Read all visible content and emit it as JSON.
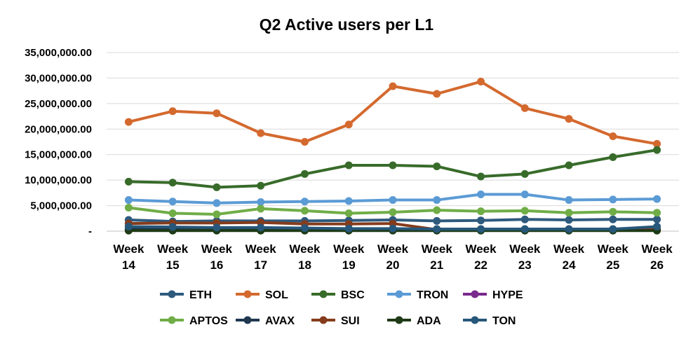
{
  "chart_data": {
    "type": "line",
    "title": "Q2 Active users per L1",
    "xlabel": "",
    "ylabel": "",
    "ylim": [
      0,
      35000000
    ],
    "y_ticks": [
      {
        "value": 0,
        "label": "-"
      },
      {
        "value": 5000000,
        "label": "5,000,000.00"
      },
      {
        "value": 10000000,
        "label": "10,000,000.00"
      },
      {
        "value": 15000000,
        "label": "15,000,000.00"
      },
      {
        "value": 20000000,
        "label": "20,000,000.00"
      },
      {
        "value": 25000000,
        "label": "25,000,000.00"
      },
      {
        "value": 30000000,
        "label": "30,000,000.00"
      },
      {
        "value": 35000000,
        "label": "35,000,000.00"
      }
    ],
    "grid": true,
    "legend_position": "bottom",
    "categories": [
      {
        "line1": "Week",
        "line2": "14"
      },
      {
        "line1": "Week",
        "line2": "15"
      },
      {
        "line1": "Week",
        "line2": "16"
      },
      {
        "line1": "Week",
        "line2": "17"
      },
      {
        "line1": "Week",
        "line2": "18"
      },
      {
        "line1": "Week",
        "line2": "19"
      },
      {
        "line1": "Week",
        "line2": "20"
      },
      {
        "line1": "Week",
        "line2": "21"
      },
      {
        "line1": "Week",
        "line2": "22"
      },
      {
        "line1": "Week",
        "line2": "23"
      },
      {
        "line1": "Week",
        "line2": "24"
      },
      {
        "line1": "Week",
        "line2": "25"
      },
      {
        "line1": "Week",
        "line2": "26"
      }
    ],
    "series": [
      {
        "name": "ETH",
        "color": "#2E5A7E",
        "values": [
          2200000,
          1900000,
          2000000,
          2000000,
          2000000,
          2100000,
          2200000,
          2000000,
          2100000,
          2300000,
          2200000,
          2300000,
          2300000
        ]
      },
      {
        "name": "SOL",
        "color": "#D4692E",
        "values": [
          21400000,
          23500000,
          23100000,
          19200000,
          17500000,
          20900000,
          28400000,
          26900000,
          29300000,
          24100000,
          22000000,
          18600000,
          17100000
        ]
      },
      {
        "name": "BSC",
        "color": "#386B2A",
        "values": [
          9700000,
          9500000,
          8600000,
          8900000,
          11200000,
          12900000,
          12900000,
          12700000,
          10700000,
          11200000,
          12900000,
          14500000,
          15900000
        ]
      },
      {
        "name": "TRON",
        "color": "#5B9BD5",
        "values": [
          6100000,
          5800000,
          5500000,
          5700000,
          5800000,
          5900000,
          6100000,
          6100000,
          7200000,
          7200000,
          6100000,
          6200000,
          6300000
        ]
      },
      {
        "name": "HYPE",
        "color": "#7A2A8C",
        "values": [
          200000,
          200000,
          200000,
          200000,
          200000,
          200000,
          200000,
          200000,
          200000,
          200000,
          200000,
          200000,
          200000
        ]
      },
      {
        "name": "APTOS",
        "color": "#70AD47",
        "values": [
          4600000,
          3500000,
          3300000,
          4400000,
          4000000,
          3500000,
          3700000,
          4100000,
          3900000,
          4000000,
          3600000,
          3800000,
          3600000
        ]
      },
      {
        "name": "AVAX",
        "color": "#1F3850",
        "values": [
          400000,
          400000,
          400000,
          400000,
          400000,
          400000,
          400000,
          400000,
          400000,
          400000,
          400000,
          400000,
          400000
        ]
      },
      {
        "name": "SUI",
        "color": "#843C1C",
        "values": [
          1500000,
          1600000,
          1600000,
          1700000,
          1400000,
          1400000,
          1500000,
          300000,
          300000,
          300000,
          300000,
          300000,
          300000
        ]
      },
      {
        "name": "ADA",
        "color": "#1E3A16",
        "values": [
          100000,
          100000,
          100000,
          100000,
          100000,
          100000,
          100000,
          100000,
          100000,
          100000,
          100000,
          100000,
          100000
        ]
      },
      {
        "name": "TON",
        "color": "#27577A",
        "values": [
          900000,
          800000,
          700000,
          700000,
          600000,
          500000,
          500000,
          400000,
          400000,
          400000,
          400000,
          400000,
          900000
        ]
      }
    ]
  }
}
